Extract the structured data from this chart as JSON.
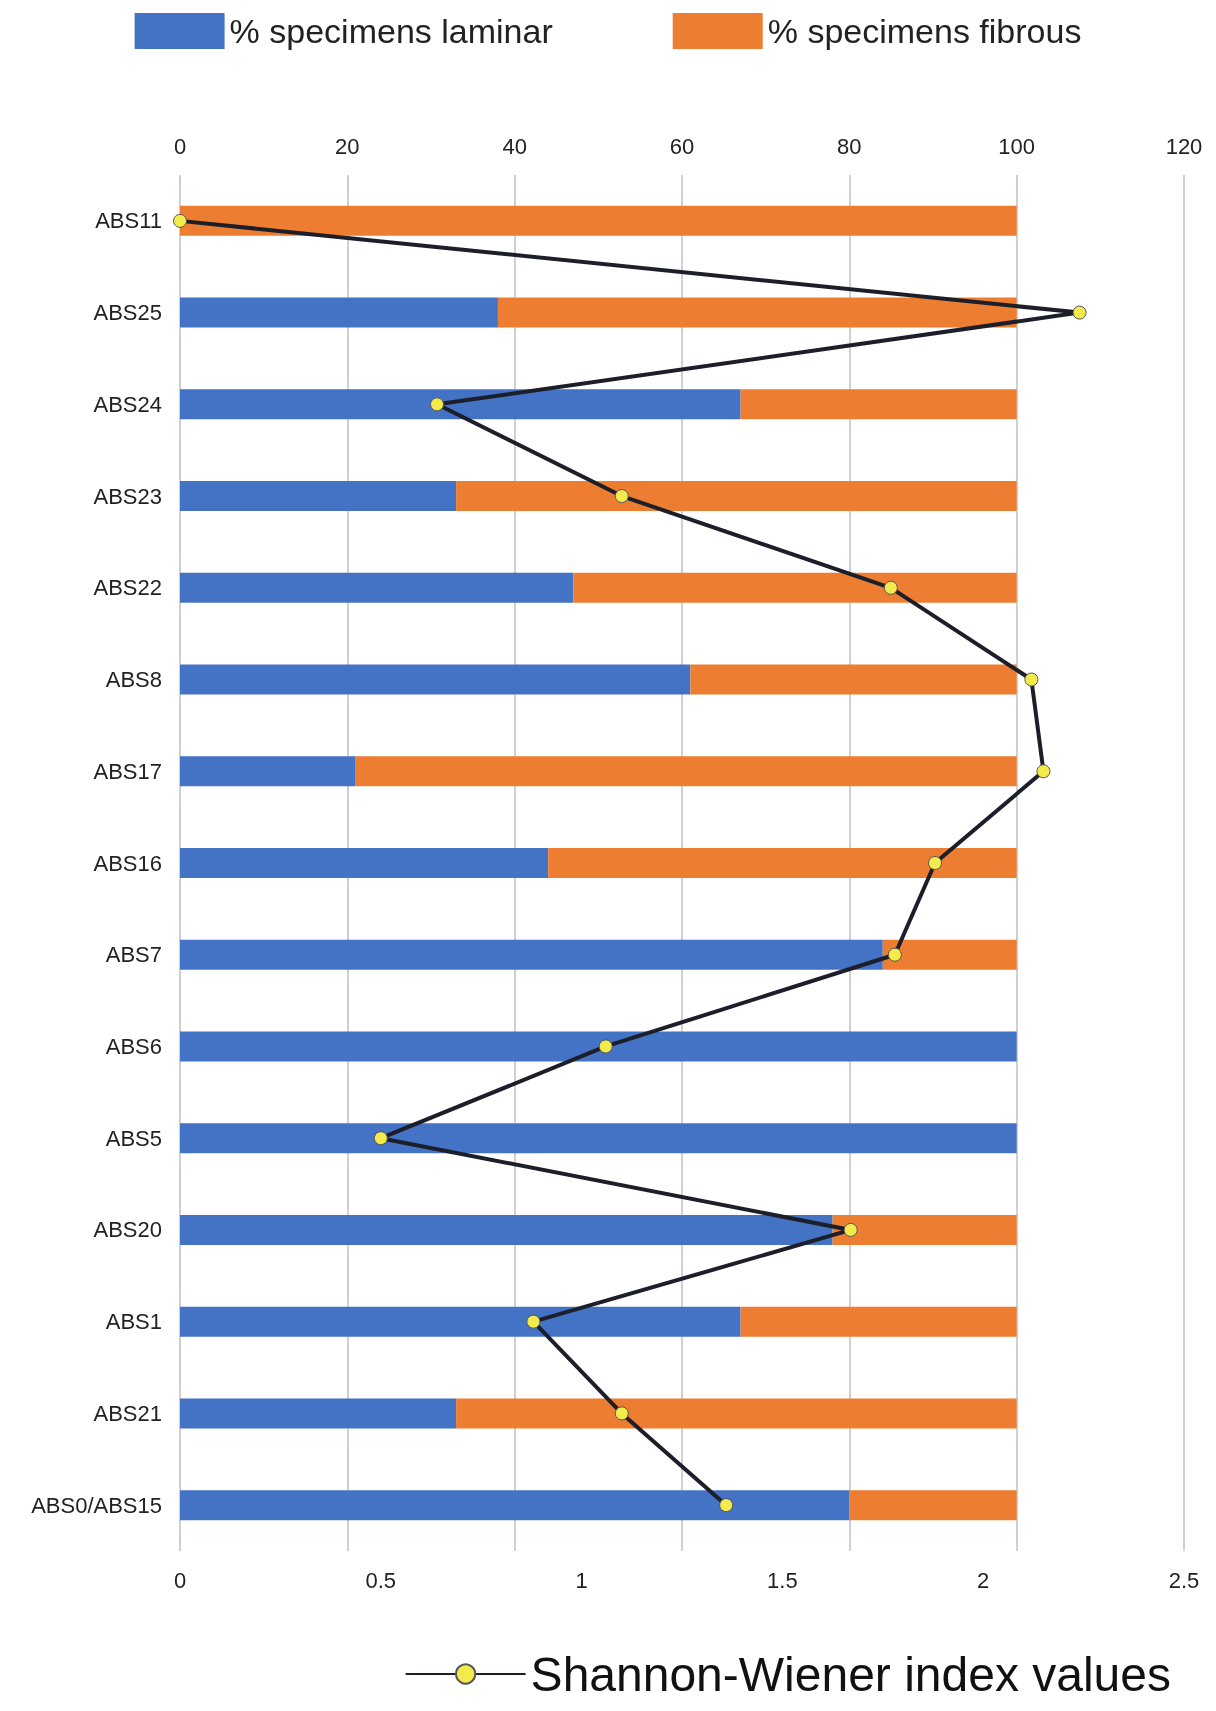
{
  "chart_data": {
    "type": "bar",
    "orientation": "horizontal",
    "stacked": true,
    "categories": [
      "ABS11",
      "ABS25",
      "ABS24",
      "ABS23",
      "ABS22",
      "ABS8",
      "ABS17",
      "ABS16",
      "ABS7",
      "ABS6",
      "ABS5",
      "ABS20",
      "ABS1",
      "ABS21",
      "ABS0/ABS15"
    ],
    "series": [
      {
        "name": "% specimens laminar",
        "color": "#4472c4",
        "values": [
          0,
          38,
          67,
          33,
          47,
          61,
          21,
          44,
          84,
          100,
          100,
          78,
          67,
          33,
          80
        ]
      },
      {
        "name": "% specimens fibrous",
        "color": "#ed7d31",
        "values": [
          100,
          62,
          33,
          67,
          53,
          39,
          79,
          56,
          16,
          0,
          0,
          22,
          33,
          67,
          20
        ]
      },
      {
        "name": "Shannon-Wiener index values",
        "type": "line",
        "axis": "x2",
        "color": "#1c1f2a",
        "marker": "circle",
        "values": [
          0,
          2.24,
          0.64,
          1.1,
          1.77,
          2.12,
          2.15,
          1.88,
          1.78,
          1.06,
          0.5,
          1.67,
          0.88,
          1.1,
          1.36
        ]
      }
    ],
    "xlim": [
      0,
      120
    ],
    "xticks": [
      0,
      20,
      40,
      60,
      80,
      100,
      120
    ],
    "x2lim": [
      0,
      2.5
    ],
    "x2ticks": [
      0,
      0.5,
      1,
      1.5,
      2,
      2.5
    ],
    "grid": "x",
    "legend": "top"
  }
}
